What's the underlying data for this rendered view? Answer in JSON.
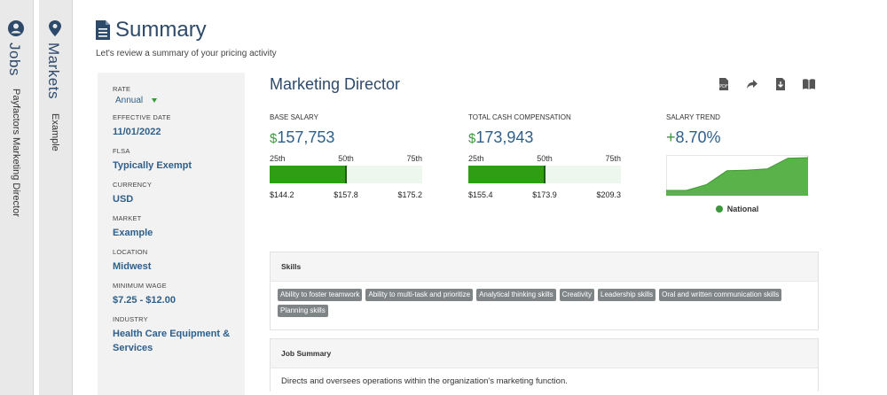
{
  "rails": {
    "jobs": {
      "title": "Jobs",
      "subtitle": "Payfactors Marketing Director",
      "icon": "user-circle-icon"
    },
    "markets": {
      "title": "Markets",
      "subtitle": "Example",
      "icon": "map-pin-icon"
    }
  },
  "page": {
    "title": "Summary",
    "subtitle": "Let's review a summary of your pricing activity",
    "icon": "document-icon"
  },
  "side": {
    "rate": {
      "label": "RATE",
      "value": "Annual"
    },
    "fields": [
      {
        "label": "EFFECTIVE DATE",
        "value": "11/01/2022"
      },
      {
        "label": "FLSA",
        "value": "Typically Exempt"
      },
      {
        "label": "CURRENCY",
        "value": "USD"
      },
      {
        "label": "MARKET",
        "value": "Example"
      },
      {
        "label": "LOCATION",
        "value": "Midwest"
      },
      {
        "label": "MINIMUM WAGE",
        "value": "$7.25 - $12.00"
      },
      {
        "label": "INDUSTRY",
        "value": "Health Care Equipment & Services"
      }
    ]
  },
  "job": {
    "title": "Marketing Director",
    "actions": [
      "pdf-icon",
      "share-icon",
      "download-icon",
      "book-icon"
    ]
  },
  "base_salary": {
    "label": "BASE SALARY",
    "currency": "$",
    "value": "157,753",
    "p25_label": "25th",
    "p50_label": "50th",
    "p75_label": "75th",
    "p25": "$144.2",
    "p50": "$157.8",
    "p75": "$175.2",
    "fill_fraction": 0.5
  },
  "total_cash": {
    "label": "TOTAL CASH COMPENSATION",
    "currency": "$",
    "value": "173,943",
    "p25_label": "25th",
    "p50_label": "50th",
    "p75_label": "75th",
    "p25": "$155.4",
    "p50": "$173.9",
    "p75": "$209.3",
    "fill_fraction": 0.5
  },
  "trend": {
    "label": "SALARY TREND",
    "sign": "+",
    "value": "8.70%",
    "legend": "National",
    "color": "#5ab24a"
  },
  "chart_data": {
    "type": "area",
    "series": [
      {
        "name": "National",
        "values": [
          0.0,
          0.0,
          0.18,
          0.6,
          0.62,
          0.66,
          0.98,
          1.0
        ]
      }
    ]
  },
  "skills": {
    "header": "Skills",
    "items": [
      "Ability to foster teamwork",
      "Ability to multi-task and prioritize",
      "Analytical thinking skills",
      "Creativity",
      "Leadership skills",
      "Oral and written communication skills",
      "Planning skills"
    ]
  },
  "summary": {
    "header": "Job Summary",
    "text": "Directs and oversees operations within the organization's marketing function."
  },
  "colors": {
    "accent": "#2e4a6a",
    "bar": "#2f9e14",
    "bar_bg": "#eef7ee",
    "tag": "#7f8487"
  }
}
